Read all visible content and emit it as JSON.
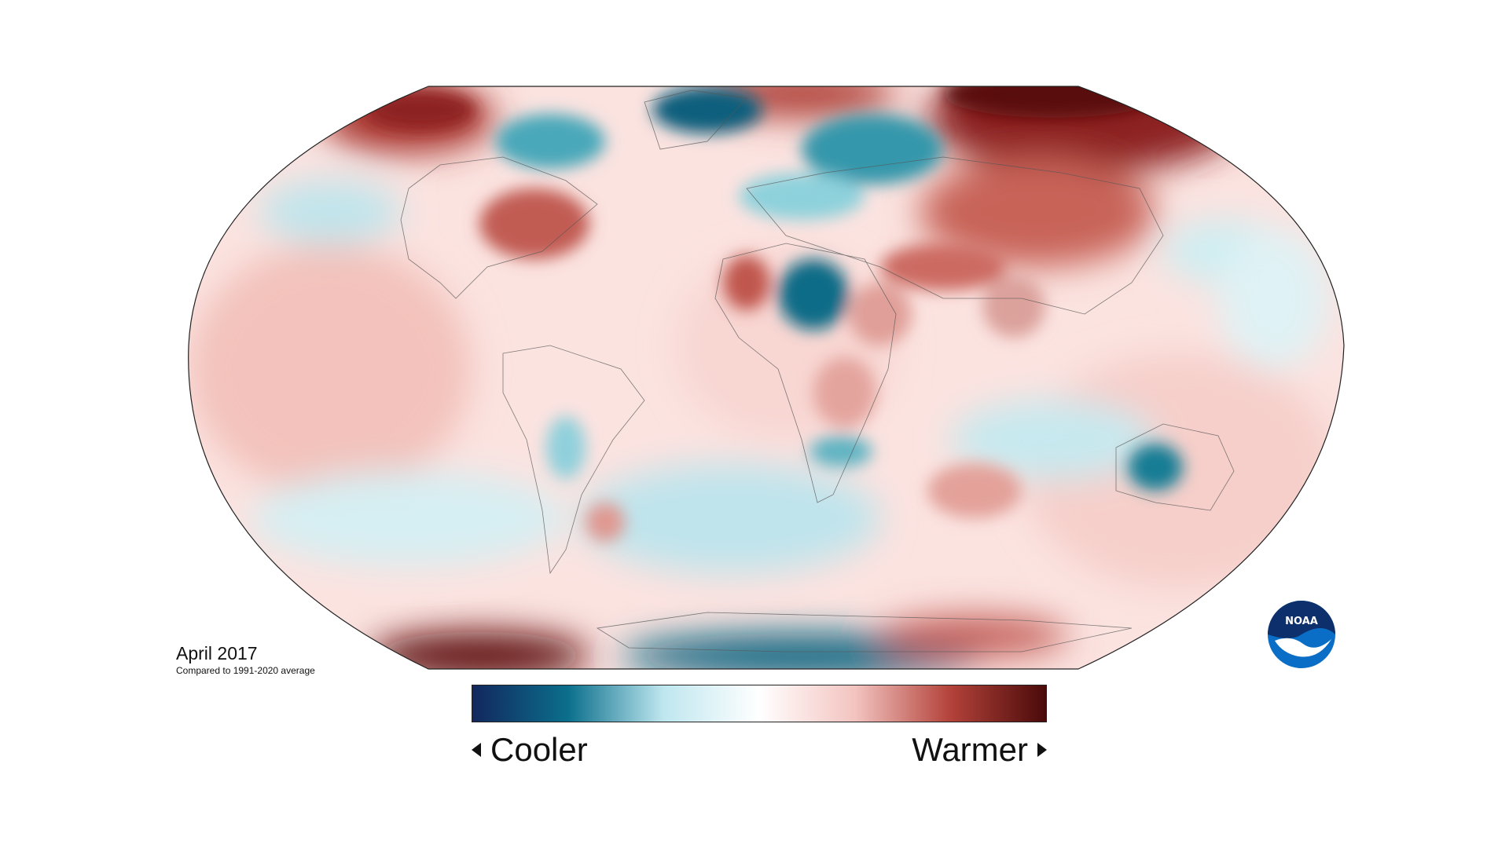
{
  "map": {
    "projection": "robinson",
    "subject": "global surface temperature anomaly",
    "colors": {
      "cool_extreme": "#12275e",
      "cool_mid": "#0b6f8c",
      "cool_light": "#bfe7ef",
      "neutral": "#ffffff",
      "warm_light": "#f3c4c0",
      "warm_mid": "#b3423a",
      "warm_extreme": "#4a0a0a"
    }
  },
  "caption": {
    "title": "April 2017",
    "subtitle": "Compared to 1991-2020 average"
  },
  "legend": {
    "cool_label": "Cooler",
    "warm_label": "Warmer"
  },
  "logo": {
    "text": "NOAA",
    "icon": "noaa-logo-icon"
  }
}
